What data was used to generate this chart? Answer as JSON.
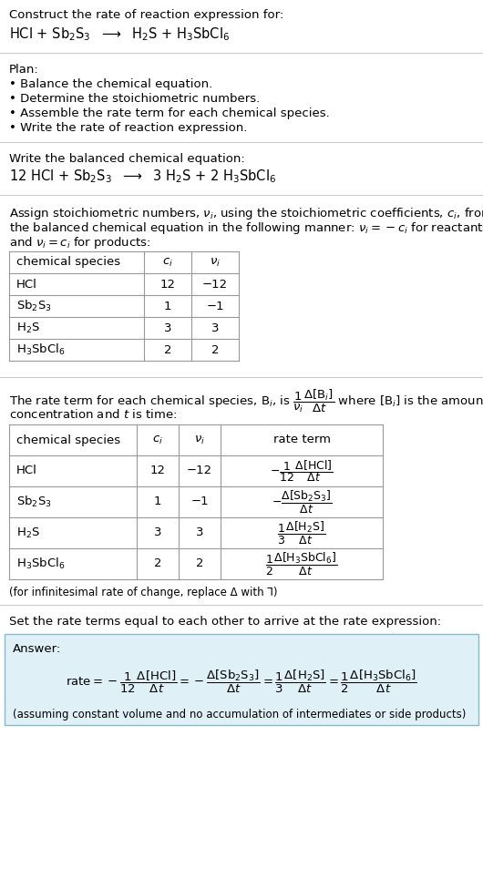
{
  "bg_color": "#ffffff",
  "answer_bg": "#dff0f7",
  "answer_border": "#88bbcc",
  "text_color": "#000000",
  "line_color": "#cccccc",
  "table_line_color": "#999999",
  "title_line1": "Construct the rate of reaction expression for:",
  "plan_header": "Plan:",
  "plan_items": [
    "• Balance the chemical equation.",
    "• Determine the stoichiometric numbers.",
    "• Assemble the rate term for each chemical species.",
    "• Write the rate of reaction expression."
  ],
  "balanced_header": "Write the balanced chemical equation:",
  "assign_para1": "Assign stoichiometric numbers, $\\nu_i$, using the stoichiometric coefficients, $c_i$, from",
  "assign_para2": "the balanced chemical equation in the following manner: $\\nu_i = -c_i$ for reactants",
  "assign_para3": "and $\\nu_i = c_i$ for products:",
  "rate_para1": "The rate term for each chemical species, B$_i$, is $\\dfrac{1}{\\nu_i}\\dfrac{\\Delta[\\mathrm{B}_i]}{\\Delta t}$ where [B$_i$] is the amount",
  "rate_para2": "concentration and $t$ is time:",
  "infinitesimal_note": "(for infinitesimal rate of change, replace Δ with ⅂)",
  "set_rate_text": "Set the rate terms equal to each other to arrive at the rate expression:",
  "answer_label": "Answer:",
  "assuming_note": "(assuming constant volume and no accumulation of intermediates or side products)",
  "species_labels_math": [
    "HCl",
    "Sb$_2$S$_3$",
    "H$_2$S",
    "H$_3$SbCl$_6$"
  ],
  "table1_ci": [
    "12",
    "1",
    "3",
    "2"
  ],
  "table1_nui": [
    "−12",
    "−1",
    "3",
    "2"
  ],
  "table2_ci": [
    "12",
    "1",
    "3",
    "2"
  ],
  "table2_nui": [
    "−12",
    "−1",
    "3",
    "2"
  ],
  "rate_terms_math": [
    "$-\\dfrac{1}{12}\\dfrac{\\Delta[\\mathrm{HCl}]}{\\Delta t}$",
    "$-\\dfrac{\\Delta[\\mathrm{Sb_2S_3}]}{\\Delta t}$",
    "$\\dfrac{1}{3}\\dfrac{\\Delta[\\mathrm{H_2S}]}{\\Delta t}$",
    "$\\dfrac{1}{2}\\dfrac{\\Delta[\\mathrm{H_3SbCl_6}]}{\\Delta t}$"
  ],
  "rate_expression_math": "$\\mathrm{rate} = -\\dfrac{1}{12}\\dfrac{\\Delta[\\mathrm{HCl}]}{\\Delta t} = -\\dfrac{\\Delta[\\mathrm{Sb_2S_3}]}{\\Delta t} = \\dfrac{1}{3}\\dfrac{\\Delta[\\mathrm{H_2S}]}{\\Delta t} = \\dfrac{1}{2}\\dfrac{\\Delta[\\mathrm{H_3SbCl_6}]}{\\Delta t}$"
}
